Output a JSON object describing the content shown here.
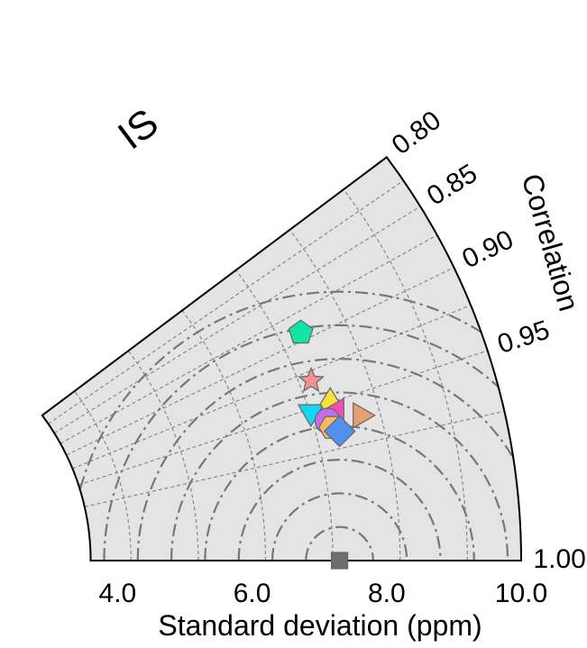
{
  "chart_data": {
    "type": "scatter",
    "diagram": "taylor",
    "panel_label": "IS",
    "xlabel": "Standard deviation (ppm)",
    "corr_axis_label": "Correlation",
    "std_range": [
      3.6,
      10.0
    ],
    "corr_range": [
      0.8,
      1.0
    ],
    "x_ticks": [
      "4.0",
      "6.0",
      "8.0",
      "10.0"
    ],
    "x_tick_values": [
      4.0,
      6.0,
      8.0,
      10.0
    ],
    "corr_ticks": [
      "0.80",
      "0.85",
      "0.90",
      "0.95",
      "1.00"
    ],
    "corr_tick_values": [
      0.8,
      0.85,
      0.9,
      0.95,
      1.0
    ],
    "std_grid": [
      4.2,
      5.2,
      6.2,
      7.2,
      8.2,
      9.2
    ],
    "corr_grid": [
      0.8,
      0.825,
      0.85,
      0.875,
      0.9,
      0.925,
      0.95,
      0.975
    ],
    "rms_contours": [
      0.5,
      1.0,
      1.5,
      2.0,
      2.5,
      3.0,
      3.5,
      4.0
    ],
    "background_color": "#e4e4e4",
    "reference": {
      "std": 7.3,
      "corr": 1.0,
      "marker": "square",
      "color": "#6e6e6e"
    },
    "points": [
      {
        "marker": "pentagon",
        "color": "#14e3a6",
        "std": 7.53,
        "corr": 0.893
      },
      {
        "marker": "star",
        "color": "#f09090",
        "std": 7.38,
        "corr": 0.932
      },
      {
        "marker": "triangle-down",
        "color": "#14d8f2",
        "std": 7.22,
        "corr": 0.952
      },
      {
        "marker": "diamond",
        "color": "#f7e13a",
        "std": 7.53,
        "corr": 0.951
      },
      {
        "marker": "triangle-left",
        "color": "#ef4fb2",
        "std": 7.59,
        "corr": 0.956
      },
      {
        "marker": "circle",
        "color": "#c36ef0",
        "std": 7.42,
        "corr": 0.96
      },
      {
        "marker": "triangle-right",
        "color": "#e4a072",
        "std": 7.91,
        "corr": 0.962
      },
      {
        "marker": "hexagon",
        "color": "#f7b862",
        "std": 7.45,
        "corr": 0.964
      },
      {
        "marker": "square",
        "color": "#4f91ec",
        "std": 7.55,
        "corr": 0.967
      }
    ]
  }
}
